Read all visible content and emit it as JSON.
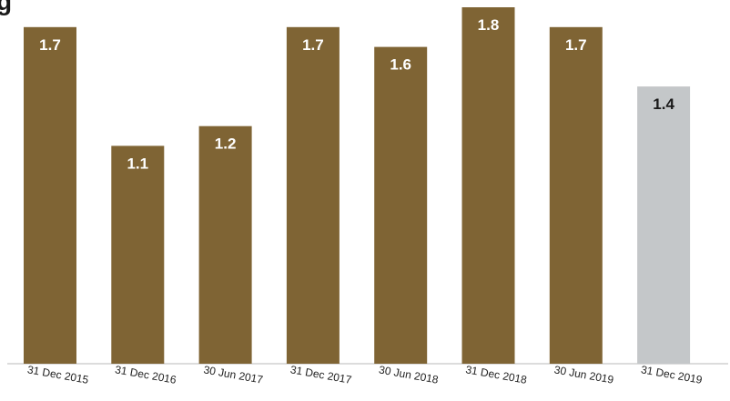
{
  "chart_data": {
    "type": "bar",
    "title": "g",
    "categories": [
      "31 Dec 2015",
      "31 Dec 2016",
      "30 Jun 2017",
      "31 Dec 2017",
      "30 Jun 2018",
      "31 Dec 2018",
      "30 Jun 2019",
      "31 Dec 2019"
    ],
    "values": [
      1.7,
      1.1,
      1.2,
      1.7,
      1.6,
      1.8,
      1.7,
      1.4
    ],
    "value_labels": [
      "1.7",
      "1.1",
      "1.2",
      "1.7",
      "1.6",
      "1.8",
      "1.7",
      "1.4"
    ],
    "ylim": [
      0,
      1.8
    ],
    "grid": false,
    "colors": {
      "bar": "#7F6434",
      "highlight_bar": "#C4C7C9",
      "label_on_bar": "#FFFFFF",
      "label_on_highlight": "#1A1A1A",
      "axis": "#B8B8B8"
    },
    "highlight_index": 7
  }
}
